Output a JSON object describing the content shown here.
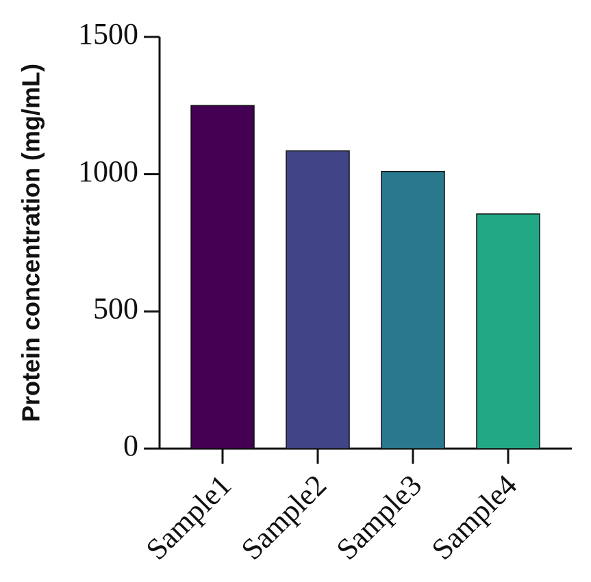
{
  "chart_data": {
    "type": "bar",
    "y_label": "Protein concentration (mg/mL)",
    "categories": [
      "Sample1",
      "Sample2",
      "Sample3",
      "Sample4"
    ],
    "values": [
      1250,
      1085,
      1010,
      855
    ],
    "colors": [
      "#440154",
      "#414487",
      "#2a788e",
      "#22a884"
    ],
    "ylim": [
      0,
      1500
    ],
    "yticks": [
      0,
      500,
      1000,
      1500
    ],
    "grid": false
  }
}
